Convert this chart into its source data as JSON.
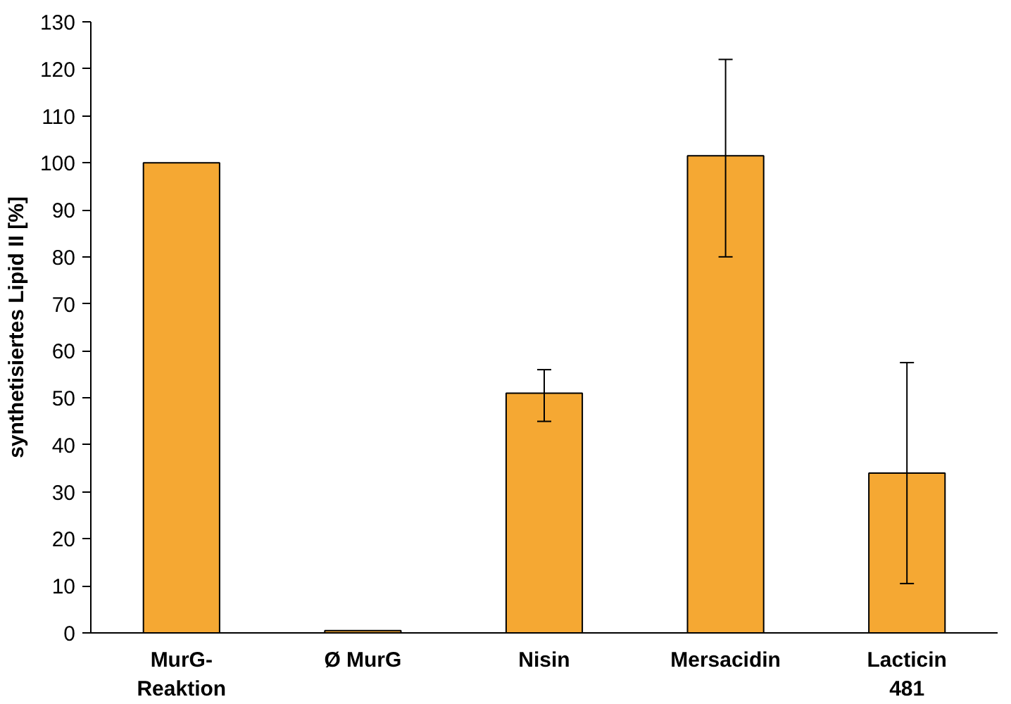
{
  "chart_data": {
    "type": "bar",
    "ylabel": "synthetisiertes Lipid II [%]",
    "categories": [
      "MurG-\nReaktion",
      "Ø MurG",
      "Nisin",
      "Mersacidin",
      "Lacticin\n481"
    ],
    "values": [
      100,
      0.5,
      51,
      101.5,
      34
    ],
    "errors": [
      null,
      null,
      [
        45,
        56
      ],
      [
        80,
        122
      ],
      [
        10.5,
        57.5
      ]
    ],
    "color": "#f5a833",
    "ylim": [
      0,
      130
    ],
    "yticks": [
      0,
      10,
      20,
      30,
      40,
      50,
      60,
      70,
      80,
      90,
      100,
      110,
      120,
      130
    ],
    "grid": false
  }
}
